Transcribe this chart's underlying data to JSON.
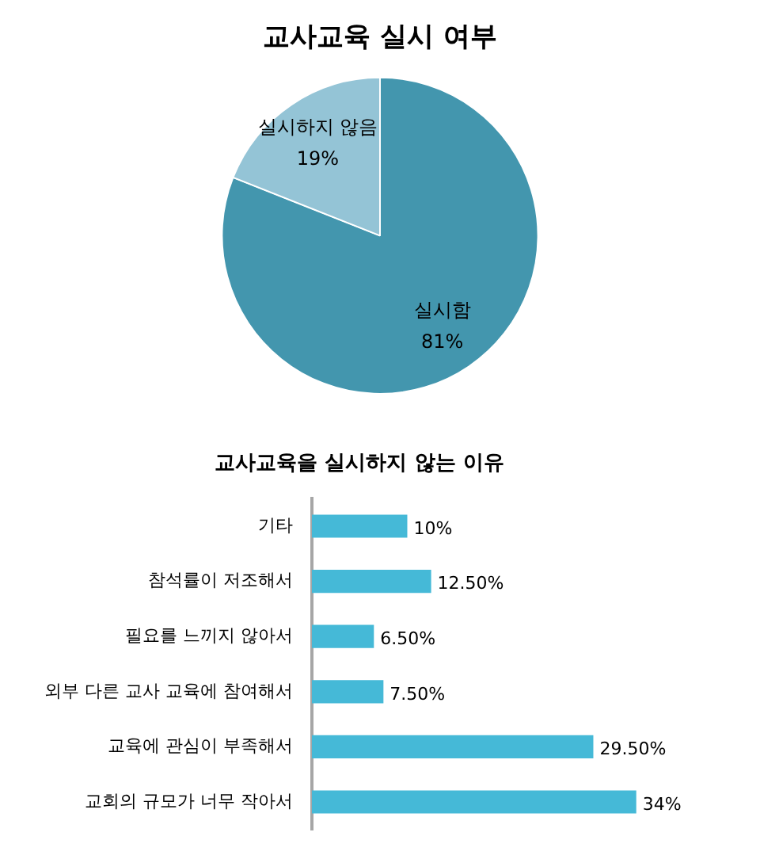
{
  "chart_data": [
    {
      "type": "pie",
      "title": "교사교육 실시 여부",
      "categories": [
        "실시함",
        "실시하지 않음"
      ],
      "values": [
        81,
        19
      ],
      "colors": [
        "#4396ae",
        "#94c4d6"
      ],
      "value_labels": [
        "81%",
        "19%"
      ]
    },
    {
      "type": "bar",
      "orientation": "horizontal",
      "title": "교사교육을 실시하지 않는 이유",
      "categories": [
        "기타",
        "참석률이 저조해서",
        "필요를 느끼지 않아서",
        "외부 다른 교사 교육에 참여해서",
        "교육에 관심이 부족해서",
        "교회의 규모가 너무 작아서"
      ],
      "values": [
        10,
        12.5,
        6.5,
        7.5,
        29.5,
        34
      ],
      "color": "#45b9d7",
      "value_labels": [
        "10%",
        "12.50%",
        "6.50%",
        "7.50%",
        "29.50%",
        "34%"
      ],
      "tick_labels": "y"
    }
  ]
}
